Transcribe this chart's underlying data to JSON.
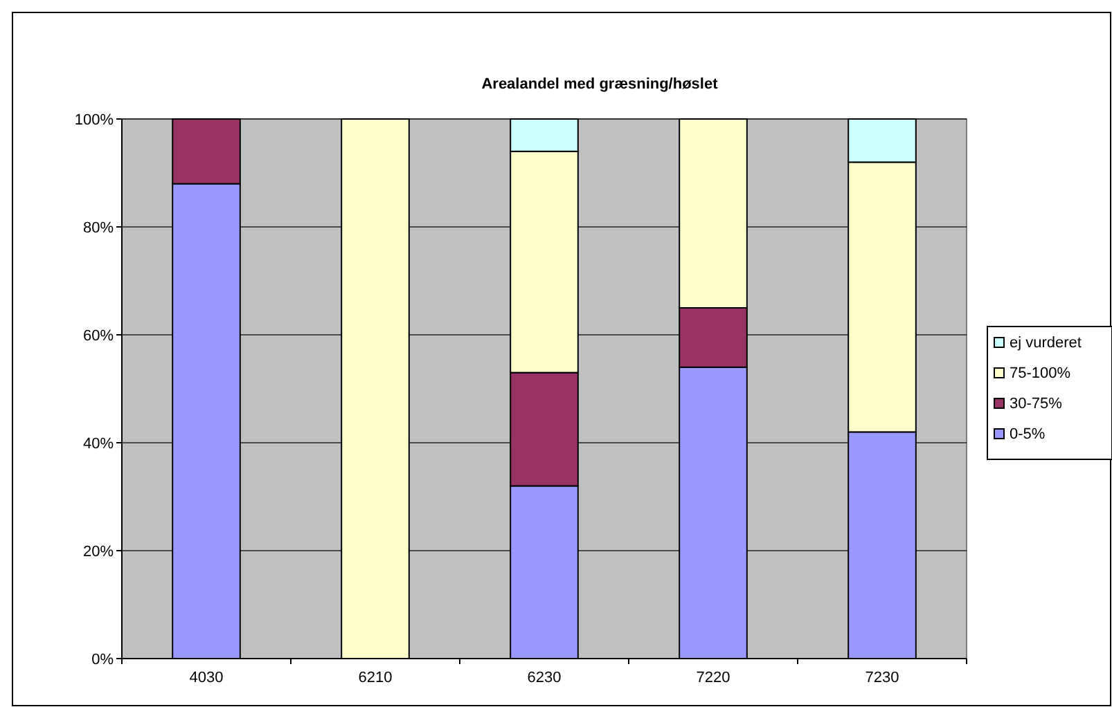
{
  "chart_data": {
    "type": "bar",
    "title": "Arealandel med græsning/høslet",
    "stacked": true,
    "categories": [
      "4030",
      "6210",
      "6230",
      "7220",
      "7230"
    ],
    "series": [
      {
        "name": "0-5%",
        "color": "#9999ff",
        "values": [
          88,
          0,
          32,
          54,
          42
        ]
      },
      {
        "name": "30-75%",
        "color": "#993366",
        "values": [
          12,
          0,
          21,
          11,
          0
        ]
      },
      {
        "name": "75-100%",
        "color": "#ffffcc",
        "values": [
          0,
          100,
          41,
          35,
          50
        ]
      },
      {
        "name": "ej vurderet",
        "color": "#ccffff",
        "values": [
          0,
          0,
          6,
          0,
          8
        ]
      }
    ],
    "ylim": [
      0,
      100
    ],
    "yticks": [
      {
        "value": 0,
        "label": "0%"
      },
      {
        "value": 20,
        "label": "20%"
      },
      {
        "value": 40,
        "label": "40%"
      },
      {
        "value": 60,
        "label": "60%"
      },
      {
        "value": 80,
        "label": "80%"
      },
      {
        "value": 100,
        "label": "100%"
      }
    ],
    "grid": "y",
    "legend": "right"
  }
}
